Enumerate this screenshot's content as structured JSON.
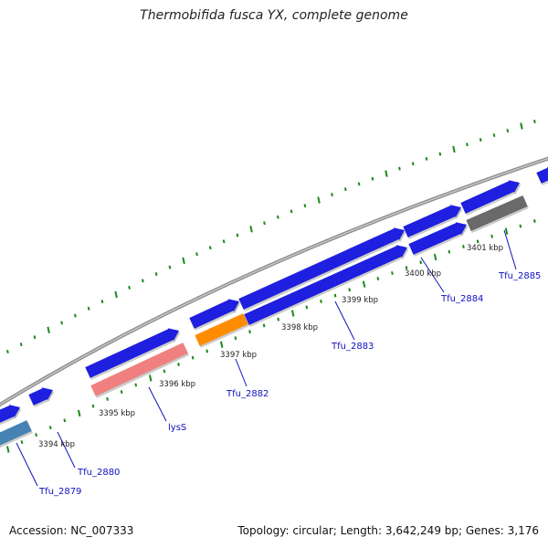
{
  "title": "Thermobifida fusca YX, complete genome",
  "footer": {
    "accession": "Accession: NC_007333",
    "summary": "Topology: circular; Length: 3,642,249 bp; Genes: 3,176"
  },
  "colors": {
    "gene_blue": "#1f1fe0",
    "gene_steelblue": "#4682b4",
    "gene_pink": "#f08080",
    "gene_orange": "#ff8c00",
    "gene_gray": "#6a6a6a",
    "tick_green": "#1a8a1a",
    "backbone": "#8c8c8c",
    "label_blue": "#1010c0"
  },
  "ruler_labels": [
    "3394 kbp",
    "3395 kbp",
    "3396 kbp",
    "3397 kbp",
    "3398 kbp",
    "3399 kbp",
    "3400 kbp",
    "3401 kbp"
  ],
  "gene_labels": [
    "Tfu_2879",
    "Tfu_2880",
    "lysS",
    "Tfu_2882",
    "Tfu_2883",
    "Tfu_2884",
    "Tfu_2885"
  ]
}
